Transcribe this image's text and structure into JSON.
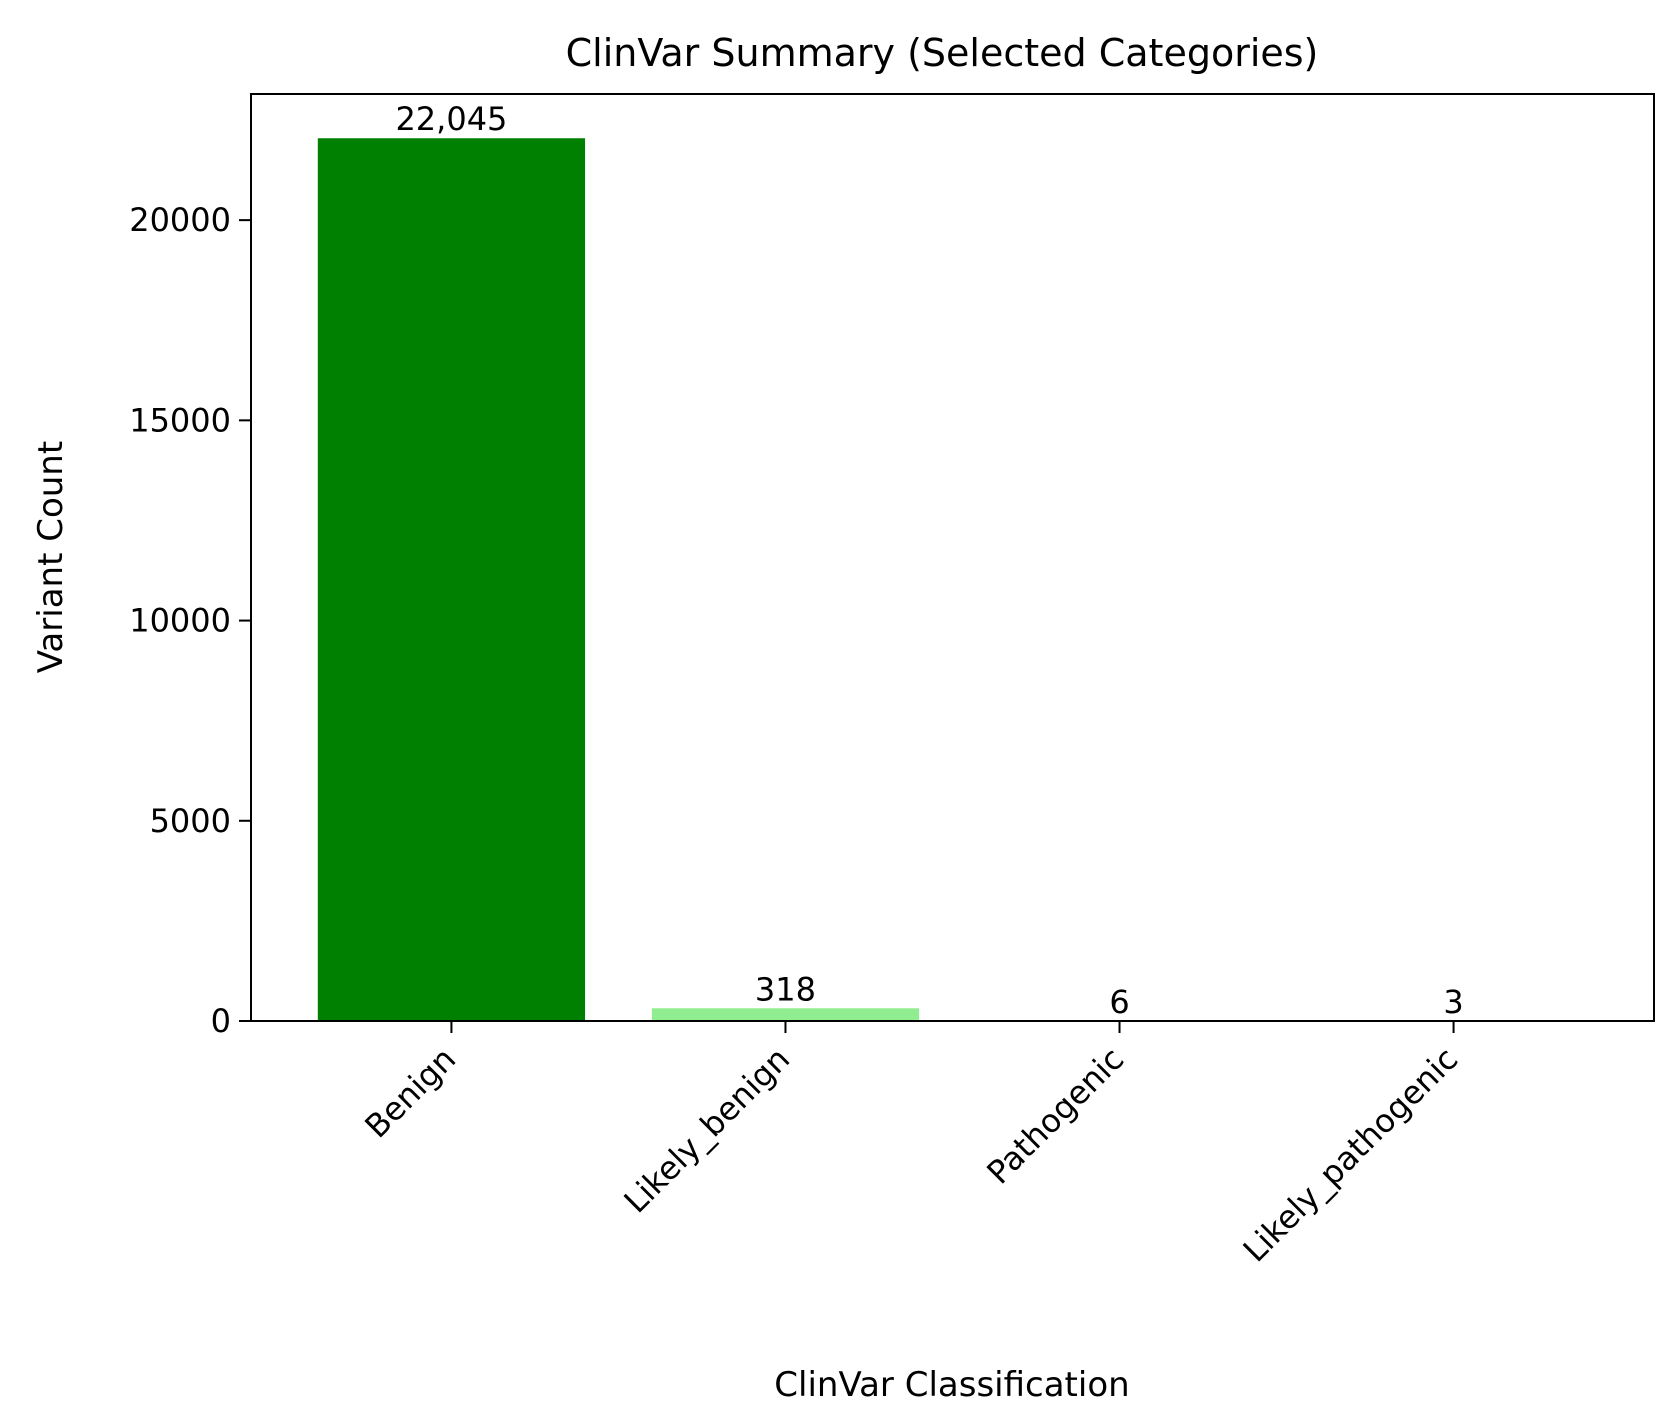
{
  "chart_data": {
    "type": "bar",
    "title": "ClinVar Summary (Selected Categories)",
    "xlabel": "ClinVar Classification",
    "ylabel": "Variant Count",
    "categories": [
      "Benign",
      "Likely_benign",
      "Pathogenic",
      "Likely_pathogenic"
    ],
    "values": [
      22045,
      318,
      6,
      3
    ],
    "value_labels": [
      "22,045",
      "318",
      "6",
      "3"
    ],
    "colors": [
      "#008000",
      "#90EE90",
      "#ff0000",
      "#fa8072"
    ],
    "ylim": [
      0,
      23150
    ],
    "yticks": [
      0,
      5000,
      10000,
      15000,
      20000
    ],
    "ytick_labels": [
      "0",
      "5000",
      "10000",
      "15000",
      "20000"
    ],
    "grid": false,
    "legend": false
  }
}
